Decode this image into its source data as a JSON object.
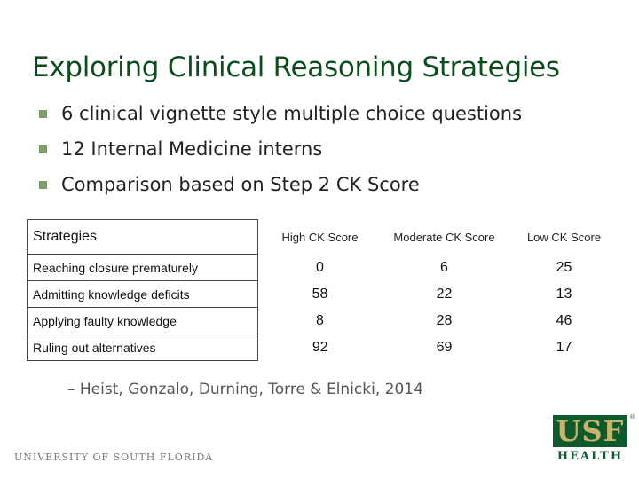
{
  "slide": {
    "title": "Exploring Clinical Reasoning Strategies",
    "bullets": [
      "6 clinical vignette style multiple choice questions",
      "12 Internal Medicine interns",
      "Comparison based on Step 2 CK Score"
    ],
    "table": {
      "headers": [
        "Strategies",
        "High CK Score",
        "Moderate CK Score",
        "Low CK Score"
      ],
      "rows": [
        {
          "label": "Reaching closure prematurely",
          "high": "0",
          "moderate": "6",
          "low": "25"
        },
        {
          "label": "Admitting knowledge deficits",
          "high": "58",
          "moderate": "22",
          "low": "13"
        },
        {
          "label": "Applying faulty knowledge",
          "high": "8",
          "moderate": "28",
          "low": "46"
        },
        {
          "label": "Ruling out alternatives",
          "high": "92",
          "moderate": "69",
          "low": "17"
        }
      ]
    },
    "citation": "– Heist, Gonzalo, Durning, Torre & Elnicki, 2014",
    "footer": {
      "university_name": "UNIVERSITY OF SOUTH FLORIDA",
      "logo_text": "USF",
      "logo_subtext": "HEALTH",
      "logo_mark": "®"
    },
    "colors": {
      "title": "#0b4d1c",
      "bullet": "#7d9a6a",
      "logo_bg": "#0e5a2c",
      "logo_gold": "#c7b36a"
    }
  }
}
